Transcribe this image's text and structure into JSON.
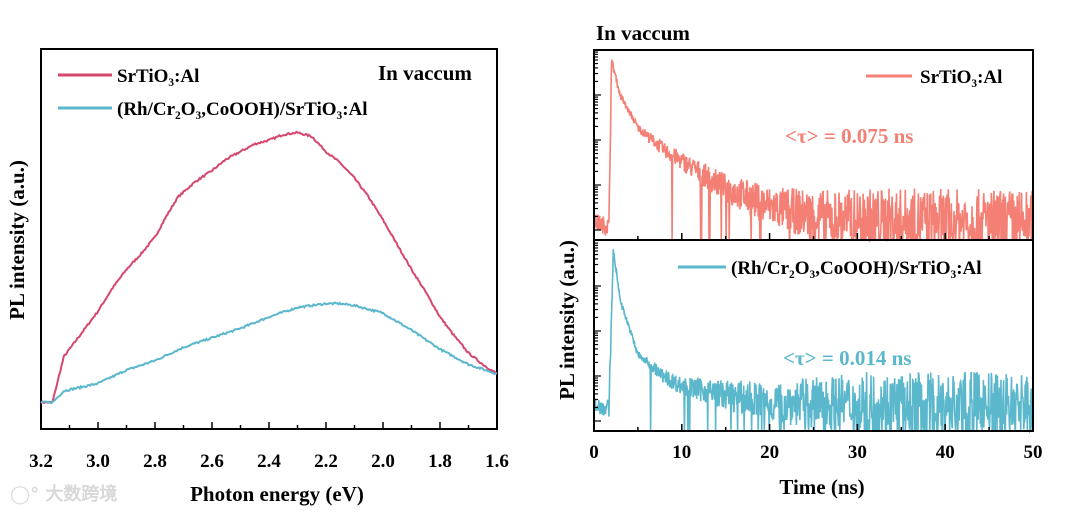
{
  "watermark": "大数跨境",
  "colors": {
    "red_left": "#d6476e",
    "cyan": "#5bb7cc",
    "red_right": "#f47f74"
  },
  "chart_data": [
    {
      "type": "line",
      "title": "",
      "annotation": "In vaccum",
      "xlabel": "Photon energy (eV)",
      "ylabel": "PL intensity (a.u.)",
      "xlim": [
        3.2,
        1.6
      ],
      "ylim": [
        0,
        100
      ],
      "xticks": [
        "3.2",
        "3.0",
        "2.8",
        "2.6",
        "2.4",
        "2.2",
        "2.0",
        "1.8",
        "1.6"
      ],
      "legend_position": "top-left",
      "series": [
        {
          "name": "SrTiO₃:Al",
          "color": "#d6476e",
          "x": [
            3.2,
            3.16,
            3.12,
            3.06,
            3.0,
            2.95,
            2.9,
            2.85,
            2.8,
            2.76,
            2.72,
            2.66,
            2.6,
            2.55,
            2.5,
            2.45,
            2.4,
            2.35,
            2.3,
            2.25,
            2.2,
            2.15,
            2.1,
            2.05,
            2.0,
            1.95,
            1.9,
            1.85,
            1.8,
            1.75,
            1.7,
            1.65,
            1.6
          ],
          "y": [
            7,
            7,
            19,
            25,
            31,
            37,
            42,
            46,
            50.5,
            56,
            61,
            65,
            68,
            71,
            73,
            75,
            76,
            77.5,
            78,
            77,
            73,
            70,
            66,
            61,
            55,
            48.5,
            42,
            36,
            29.5,
            24.5,
            20,
            17,
            14.5
          ]
        },
        {
          "name": "(Rh/Cr₂O₃,CoOOH)/SrTiO₃:Al",
          "color": "#5bb7cc",
          "x": [
            3.2,
            3.16,
            3.12,
            3.0,
            2.9,
            2.8,
            2.7,
            2.6,
            2.5,
            2.4,
            2.3,
            2.2,
            2.15,
            2.1,
            2.0,
            1.9,
            1.8,
            1.7,
            1.6
          ],
          "y": [
            7,
            7,
            10,
            12,
            15.5,
            18,
            21.5,
            24,
            26.5,
            29.5,
            32,
            33,
            33,
            32.5,
            30.5,
            26,
            21,
            17,
            14.5
          ]
        }
      ]
    },
    {
      "type": "line",
      "title": "In vaccum",
      "xlabel": "Time (ns)",
      "ylabel": "PL intensity (a.u.)",
      "yscale": "log",
      "xlim": [
        0,
        50
      ],
      "ylim_decades": [
        0,
        4.2
      ],
      "xticks": [
        "0",
        "10",
        "20",
        "30",
        "40",
        "50"
      ],
      "panels": [
        {
          "name": "SrTiO₃:Al",
          "color": "#f47f74",
          "lifetime_label": "<τ> = 0.075 ns",
          "t": [
            0,
            1.7,
            2.0,
            3,
            5,
            8,
            10,
            15,
            20,
            25,
            30,
            40,
            50
          ],
          "log_intensity": [
            0.4,
            0.3,
            4.0,
            3.2,
            2.5,
            2.0,
            1.75,
            1.15,
            0.75,
            0.55,
            0.45,
            0.42,
            0.4
          ]
        },
        {
          "name": "(Rh/Cr₂O₃,CoOOH)/SrTiO₃:Al",
          "color": "#5bb7cc",
          "lifetime_label": "<τ> = 0.014 ns",
          "t": [
            0,
            1.7,
            2.2,
            3,
            5,
            8,
            10,
            15,
            20,
            30,
            40,
            50
          ],
          "log_intensity": [
            0.6,
            0.5,
            4.0,
            2.9,
            1.7,
            1.2,
            1.0,
            0.8,
            0.65,
            0.6,
            0.6,
            0.6
          ]
        }
      ]
    }
  ]
}
